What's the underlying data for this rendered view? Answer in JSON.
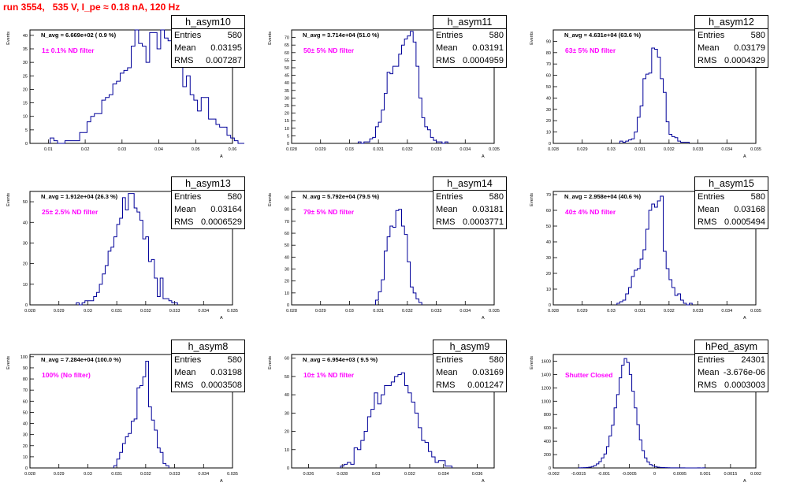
{
  "page": {
    "title": "run 3554,   535 V, I_pe ≈ 0.18 nA, 120 Hz"
  },
  "colors": {
    "title": "#ff0000",
    "annotation": "#ff00ff",
    "histogram": "#000099"
  },
  "stat_labels": {
    "entries": "Entries",
    "mean": "Mean",
    "rms": "RMS"
  },
  "chart_data": [
    {
      "type": "bar",
      "name": "h_asym10",
      "navg": "N_avg = 6.669e+02 ( 0.9 %)",
      "filter_label": "1±  0.1% ND filter",
      "stats": {
        "entries": "580",
        "mean": "0.03195",
        "rms": "0.007287"
      },
      "ylabel": "Events",
      "xlabel": "A",
      "xlim": [
        0.005,
        0.06
      ],
      "ylim": [
        0,
        42
      ],
      "xticks": [
        0.01,
        0.02,
        0.03,
        0.04,
        0.05,
        0.06
      ],
      "xtick_labels": [
        "0.01",
        "0.02",
        "0.03",
        "0.04",
        "0.05",
        "0.06"
      ],
      "yticks": [
        0,
        5,
        10,
        15,
        20,
        25,
        30,
        35,
        40
      ],
      "ytick_labels": [
        "0",
        "5",
        "10",
        "15",
        "20",
        "25",
        "30",
        "35",
        "40"
      ],
      "bin_edges_start": 0.0105,
      "bin_width": 0.001,
      "values": [
        2,
        1,
        0,
        0,
        1,
        1,
        1,
        1,
        4,
        4,
        8,
        10,
        11,
        11,
        16,
        17,
        18,
        22,
        23,
        26,
        27,
        28,
        36,
        42,
        37,
        36,
        30,
        41,
        41,
        35,
        42,
        39,
        38,
        38,
        32,
        31,
        21,
        25,
        18,
        16,
        12,
        17,
        17,
        9,
        9,
        7,
        6,
        6,
        3,
        2,
        1,
        0,
        0,
        1
      ]
    },
    {
      "type": "bar",
      "name": "h_asym11",
      "navg": "N_avg = 3.714e+04 (51.0 %)",
      "filter_label": "50±  5% ND filter",
      "stats": {
        "entries": "580",
        "mean": "0.03191",
        "rms": "0.0004959"
      },
      "ylabel": "Events",
      "xlabel": "A",
      "xlim": [
        0.028,
        0.035
      ],
      "ylim": [
        0,
        75
      ],
      "xticks": [
        0.028,
        0.029,
        0.03,
        0.031,
        0.032,
        0.033,
        0.034,
        0.035
      ],
      "xtick_labels": [
        "0.028",
        "0.029",
        "0.03",
        "0.031",
        "0.032",
        "0.033",
        "0.034",
        "0.035"
      ],
      "yticks": [
        0,
        5,
        10,
        15,
        20,
        25,
        30,
        35,
        40,
        45,
        50,
        55,
        60,
        65,
        70
      ],
      "ytick_labels": [
        "0",
        "5",
        "10",
        "15",
        "20",
        "25",
        "30",
        "35",
        "40",
        "45",
        "50",
        "55",
        "60",
        "65",
        "70"
      ],
      "bin_edges_start": 0.0303,
      "bin_width": 0.0001,
      "values": [
        1,
        0,
        1,
        1,
        3,
        4,
        11,
        14,
        22,
        33,
        47,
        46,
        51,
        51,
        59,
        65,
        69,
        71,
        74,
        67,
        51,
        30,
        17,
        11,
        9,
        4,
        2,
        1,
        1,
        0,
        1
      ]
    },
    {
      "type": "bar",
      "name": "h_asym12",
      "navg": "N_avg = 4.631e+04 (63.6 %)",
      "filter_label": "63±  5% ND filter",
      "stats": {
        "entries": "580",
        "mean": "0.03179",
        "rms": "0.0004329"
      },
      "ylabel": "Events",
      "xlabel": "A",
      "xlim": [
        0.028,
        0.035
      ],
      "ylim": [
        0,
        100
      ],
      "xticks": [
        0.028,
        0.029,
        0.03,
        0.031,
        0.032,
        0.033,
        0.034,
        0.035
      ],
      "xtick_labels": [
        "0.028",
        "0.029",
        "0.03",
        "0.031",
        "0.032",
        "0.033",
        "0.034",
        "0.035"
      ],
      "yticks": [
        0,
        10,
        20,
        30,
        40,
        50,
        60,
        70,
        80,
        90
      ],
      "ytick_labels": [
        "0",
        "10",
        "20",
        "30",
        "40",
        "50",
        "60",
        "70",
        "80",
        "90"
      ],
      "bin_edges_start": 0.0303,
      "bin_width": 0.0001,
      "values": [
        2,
        1,
        2,
        3,
        4,
        10,
        23,
        33,
        57,
        61,
        62,
        84,
        83,
        76,
        57,
        45,
        19,
        8,
        6,
        5,
        2,
        1,
        1,
        1
      ]
    },
    {
      "type": "bar",
      "name": "h_asym13",
      "navg": "N_avg = 1.912e+04 (26.3 %)",
      "filter_label": "25±  2.5% ND filter",
      "stats": {
        "entries": "580",
        "mean": "0.03164",
        "rms": "0.0006529"
      },
      "ylabel": "Events",
      "xlabel": "A",
      "xlim": [
        0.028,
        0.035
      ],
      "ylim": [
        0,
        55
      ],
      "xticks": [
        0.028,
        0.029,
        0.03,
        0.031,
        0.032,
        0.033,
        0.034,
        0.035
      ],
      "xtick_labels": [
        "0.028",
        "0.029",
        "0.03",
        "0.031",
        "0.032",
        "0.033",
        "0.034",
        "0.035"
      ],
      "yticks": [
        0,
        10,
        20,
        30,
        40,
        50
      ],
      "ytick_labels": [
        "0",
        "10",
        "20",
        "30",
        "40",
        "50"
      ],
      "bin_edges_start": 0.0296,
      "bin_width": 0.0001,
      "values": [
        1,
        0,
        1,
        2,
        2,
        2,
        4,
        6,
        10,
        15,
        19,
        26,
        28,
        33,
        39,
        42,
        52,
        46,
        54,
        54,
        47,
        45,
        41,
        32,
        33,
        21,
        22,
        13,
        4,
        13,
        3,
        3,
        2,
        1,
        1
      ]
    },
    {
      "type": "bar",
      "name": "h_asym14",
      "navg": "N_avg = 5.792e+04 (79.5 %)",
      "filter_label": "79±  5% ND filter",
      "stats": {
        "entries": "580",
        "mean": "0.03181",
        "rms": "0.0003771"
      },
      "ylabel": "Events",
      "xlabel": "A",
      "xlim": [
        0.028,
        0.035
      ],
      "ylim": [
        0,
        95
      ],
      "xticks": [
        0.028,
        0.029,
        0.03,
        0.031,
        0.032,
        0.033,
        0.034,
        0.035
      ],
      "xtick_labels": [
        "0.028",
        "0.029",
        "0.03",
        "0.031",
        "0.032",
        "0.033",
        "0.034",
        "0.035"
      ],
      "yticks": [
        0,
        10,
        20,
        30,
        40,
        50,
        60,
        70,
        80,
        90
      ],
      "ytick_labels": [
        "0",
        "10",
        "20",
        "30",
        "40",
        "50",
        "60",
        "70",
        "80",
        "90"
      ],
      "bin_edges_start": 0.0309,
      "bin_width": 0.0001,
      "values": [
        4,
        11,
        21,
        45,
        57,
        66,
        65,
        79,
        80,
        66,
        59,
        36,
        15,
        10,
        5,
        2
      ]
    },
    {
      "type": "bar",
      "name": "h_asym15",
      "navg": "N_avg = 2.958e+04 (40.6 %)",
      "filter_label": "40±  4% ND filter",
      "stats": {
        "entries": "580",
        "mean": "0.03168",
        "rms": "0.0005494"
      },
      "ylabel": "Events",
      "xlabel": "A",
      "xlim": [
        0.028,
        0.035
      ],
      "ylim": [
        0,
        72
      ],
      "xticks": [
        0.028,
        0.029,
        0.03,
        0.031,
        0.032,
        0.033,
        0.034,
        0.035
      ],
      "xtick_labels": [
        "0.028",
        "0.029",
        "0.03",
        "0.031",
        "0.032",
        "0.033",
        "0.034",
        "0.035"
      ],
      "yticks": [
        0,
        10,
        20,
        30,
        40,
        50,
        60,
        70
      ],
      "ytick_labels": [
        "0",
        "10",
        "20",
        "30",
        "40",
        "50",
        "60",
        "70"
      ],
      "bin_edges_start": 0.0302,
      "bin_width": 0.0001,
      "values": [
        1,
        2,
        3,
        7,
        11,
        18,
        22,
        23,
        29,
        35,
        48,
        60,
        64,
        62,
        66,
        69,
        34,
        23,
        16,
        11,
        6,
        7,
        3,
        1,
        0,
        1
      ]
    },
    {
      "type": "bar",
      "name": "h_asym8",
      "navg": "N_avg = 7.284e+04 (100.0 %)",
      "filter_label": "100% (No filter)",
      "stats": {
        "entries": "580",
        "mean": "0.03198",
        "rms": "0.0003508"
      },
      "ylabel": "Events",
      "xlabel": "A",
      "xlim": [
        0.028,
        0.035
      ],
      "ylim": [
        0,
        102
      ],
      "xticks": [
        0.028,
        0.029,
        0.03,
        0.031,
        0.032,
        0.033,
        0.034,
        0.035
      ],
      "xtick_labels": [
        "0.028",
        "0.029",
        "0.03",
        "0.031",
        "0.032",
        "0.033",
        "0.034",
        "0.035"
      ],
      "yticks": [
        0,
        10,
        20,
        30,
        40,
        50,
        60,
        70,
        80,
        90,
        100
      ],
      "ytick_labels": [
        "0",
        "10",
        "20",
        "30",
        "40",
        "50",
        "60",
        "70",
        "80",
        "90",
        "100"
      ],
      "bin_edges_start": 0.0309,
      "bin_width": 0.0001,
      "values": [
        2,
        8,
        14,
        22,
        28,
        31,
        42,
        44,
        72,
        74,
        82,
        96,
        55,
        43,
        34,
        18,
        14,
        4,
        2
      ]
    },
    {
      "type": "bar",
      "name": "h_asym9",
      "navg": "N_avg = 6.954e+03 ( 9.5 %)",
      "filter_label": "10±  1% ND filter",
      "stats": {
        "entries": "580",
        "mean": "0.03169",
        "rms": "0.001247"
      },
      "ylabel": "Events",
      "xlabel": "A",
      "xlim": [
        0.025,
        0.037
      ],
      "ylim": [
        0,
        62
      ],
      "xticks": [
        0.026,
        0.028,
        0.03,
        0.032,
        0.034,
        0.036
      ],
      "xtick_labels": [
        "0.026",
        "0.028",
        "0.03",
        "0.032",
        "0.034",
        "0.036"
      ],
      "yticks": [
        0,
        10,
        20,
        30,
        40,
        50,
        60
      ],
      "ytick_labels": [
        "0",
        "10",
        "20",
        "30",
        "40",
        "50",
        "60"
      ],
      "bin_edges_start": 0.0279,
      "bin_width": 0.0002,
      "values": [
        1,
        2,
        3,
        2,
        11,
        10,
        15,
        20,
        28,
        32,
        41,
        35,
        40,
        45,
        45,
        47,
        50,
        51,
        52,
        45,
        41,
        36,
        30,
        22,
        15,
        14,
        9,
        6,
        3,
        4,
        4,
        1,
        1
      ]
    },
    {
      "type": "bar",
      "name": "hPed_asym",
      "navg": "",
      "filter_label": "Shutter Closed",
      "stats": {
        "entries": "24301",
        "mean": "-3.676e-06",
        "rms": "0.0003003"
      },
      "ylabel": "Events",
      "xlabel": "A",
      "xlim": [
        -0.002,
        0.002
      ],
      "ylim": [
        0,
        1700
      ],
      "xticks": [
        -0.002,
        -0.0015,
        -0.001,
        -0.0005,
        0,
        0.0005,
        0.001,
        0.0015,
        0.002
      ],
      "xtick_labels": [
        "-0.002",
        "-0.0015",
        "-0.001",
        "-0.0005",
        "0",
        "0.0005",
        "0.001",
        "0.0015",
        "0.002"
      ],
      "yticks": [
        0,
        200,
        400,
        600,
        800,
        1000,
        1200,
        1400,
        1600
      ],
      "ytick_labels": [
        "0",
        "200",
        "400",
        "600",
        "800",
        "1000",
        "1200",
        "1400",
        "1600"
      ],
      "bin_edges_start": -0.0015,
      "bin_width": 5e-05,
      "values": [
        2,
        3,
        5,
        8,
        12,
        20,
        35,
        60,
        95,
        150,
        210,
        320,
        480,
        640,
        900,
        1100,
        1350,
        1540,
        1640,
        1580,
        1400,
        1150,
        900,
        650,
        420,
        260,
        150,
        90,
        50,
        30,
        20,
        12,
        8,
        6,
        4,
        3,
        2,
        2,
        1,
        1,
        1,
        1,
        0,
        0,
        0,
        0,
        0,
        1,
        0,
        1
      ]
    }
  ]
}
